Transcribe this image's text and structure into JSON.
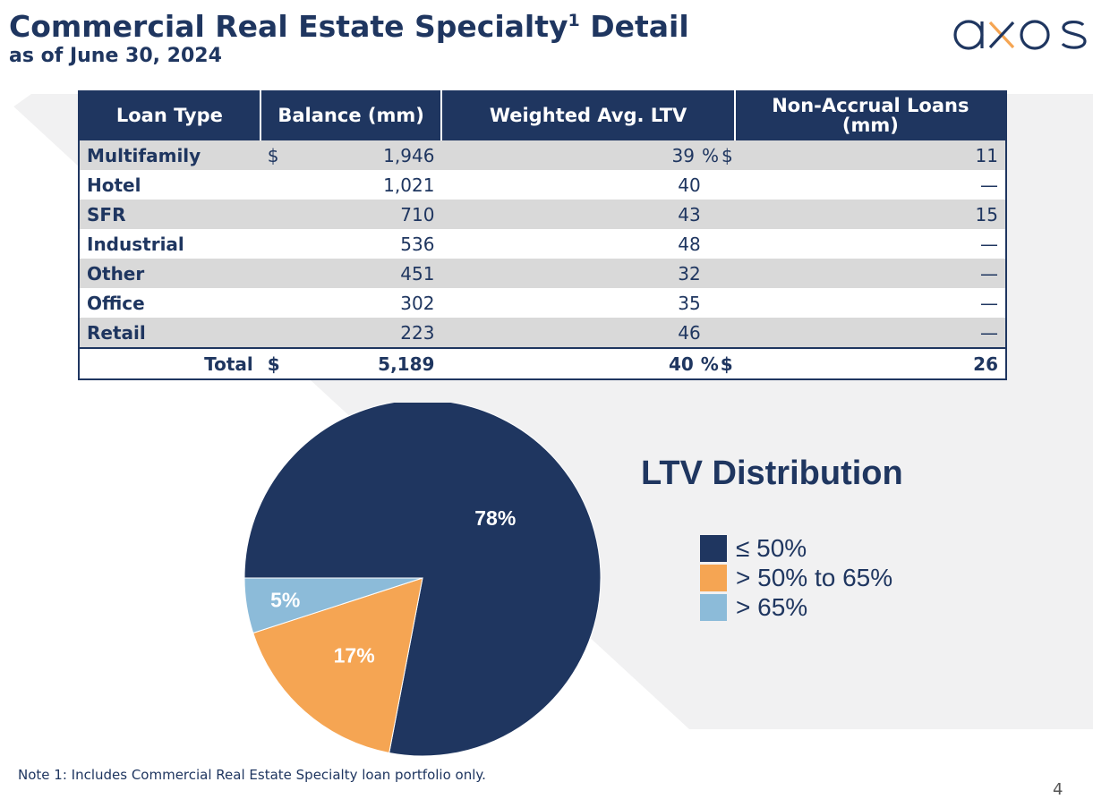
{
  "header": {
    "title": "Commercial Real Estate Specialty",
    "title_sup": "1",
    "title_after": " Detail",
    "subtitle": "as of June 30, 2024",
    "logo_text": "axos"
  },
  "table": {
    "headers": [
      "Loan Type",
      "Balance (mm)",
      "Weighted Avg. LTV",
      "Non-Accrual Loans (mm)"
    ],
    "rows": [
      {
        "type": "Multifamily",
        "bal_dollar": "$",
        "balance": "1,946",
        "ltv": "39",
        "ltv_pct": "%",
        "na_dollar": "$",
        "non_accrual": "11"
      },
      {
        "type": "Hotel",
        "bal_dollar": "",
        "balance": "1,021",
        "ltv": "40",
        "ltv_pct": "",
        "na_dollar": "",
        "non_accrual": "—"
      },
      {
        "type": "SFR",
        "bal_dollar": "",
        "balance": "710",
        "ltv": "43",
        "ltv_pct": "",
        "na_dollar": "",
        "non_accrual": "15"
      },
      {
        "type": "Industrial",
        "bal_dollar": "",
        "balance": "536",
        "ltv": "48",
        "ltv_pct": "",
        "na_dollar": "",
        "non_accrual": "—"
      },
      {
        "type": "Other",
        "bal_dollar": "",
        "balance": "451",
        "ltv": "32",
        "ltv_pct": "",
        "na_dollar": "",
        "non_accrual": "—"
      },
      {
        "type": "Office",
        "bal_dollar": "",
        "balance": "302",
        "ltv": "35",
        "ltv_pct": "",
        "na_dollar": "",
        "non_accrual": "—"
      },
      {
        "type": "Retail",
        "bal_dollar": "",
        "balance": "223",
        "ltv": "46",
        "ltv_pct": "",
        "na_dollar": "",
        "non_accrual": "—"
      }
    ],
    "total": {
      "label": "Total",
      "bal_dollar": "$",
      "balance": "5,189",
      "ltv": "40",
      "ltv_pct": "%",
      "na_dollar": "$",
      "non_accrual": "26"
    }
  },
  "chart_data": {
    "type": "pie",
    "title": "LTV Distribution",
    "categories": [
      "≤ 50%",
      "> 50% to 65%",
      "> 65%"
    ],
    "values": [
      78,
      17,
      5
    ],
    "labels": [
      "78%",
      "17%",
      "5%"
    ],
    "colors": [
      "#1f3660",
      "#f5a553",
      "#8cbbd9"
    ],
    "legend": "right"
  },
  "footer": {
    "note": "Note 1: Includes Commercial Real Estate Specialty loan portfolio only.",
    "page": "4"
  }
}
